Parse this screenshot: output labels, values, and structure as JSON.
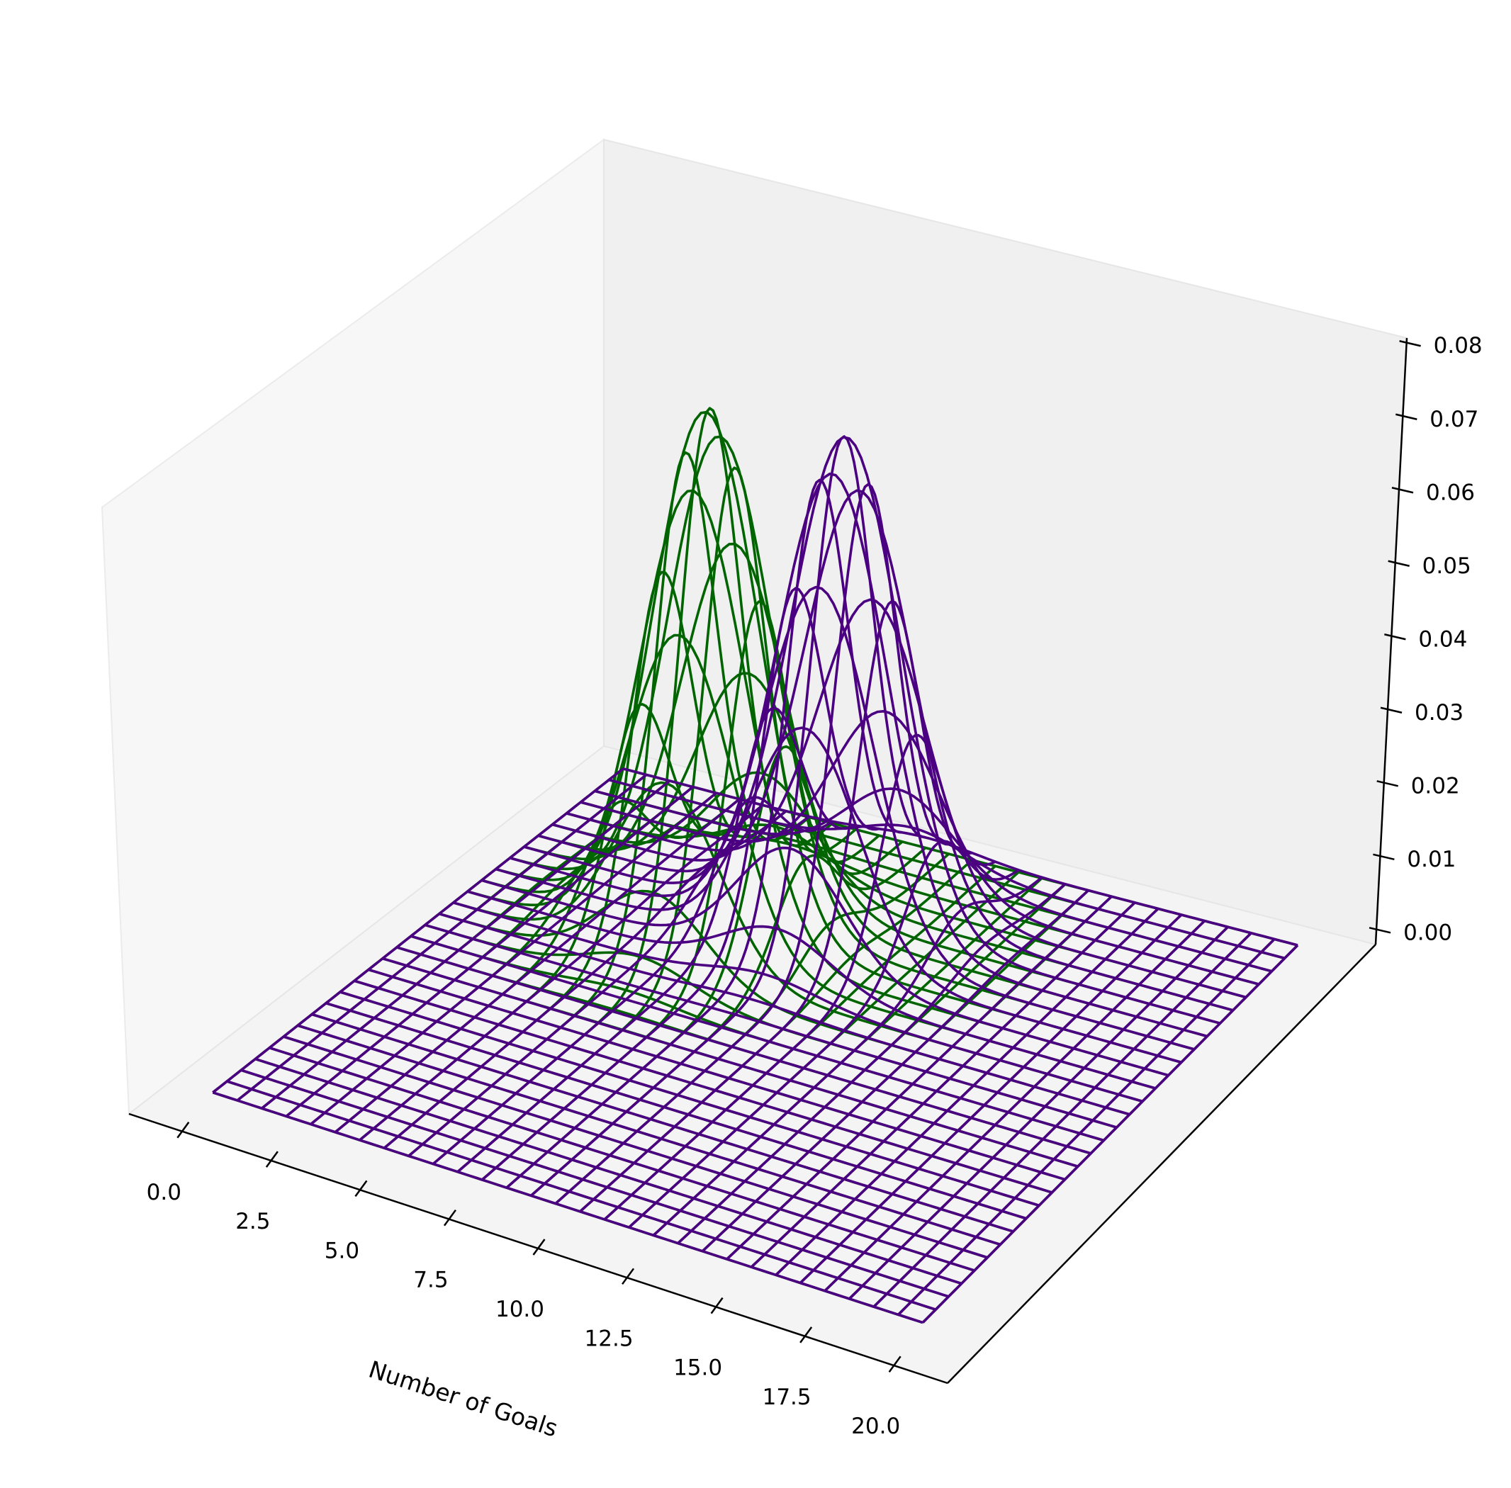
{
  "chart_data": {
    "type": "wireframe-3d",
    "title": "",
    "xlabel": "Number of Goals",
    "ylabel": "",
    "zlabel": "",
    "xlim": [
      -1.5,
      21.5
    ],
    "ylim": [
      -1.5,
      21.5
    ],
    "zlim": [
      -0.002,
      0.0807
    ],
    "x_ticks": [
      "0.0",
      "2.5",
      "5.0",
      "7.5",
      "10.0",
      "12.5",
      "15.0",
      "17.5",
      "20.0"
    ],
    "x_tick_values": [
      0,
      2.5,
      5,
      7.5,
      10,
      12.5,
      15,
      17.5,
      20
    ],
    "z_ticks": [
      "0.00",
      "0.01",
      "0.02",
      "0.03",
      "0.04",
      "0.05",
      "0.06",
      "0.07",
      "0.08"
    ],
    "z_tick_values": [
      0,
      0.01,
      0.02,
      0.03,
      0.04,
      0.05,
      0.06,
      0.07,
      0.08
    ],
    "grid_range": [
      0,
      20
    ],
    "grid_points": 30,
    "series": [
      {
        "name": "green-surface",
        "color": "#006400",
        "mean": [
          6.2,
          13.9
        ],
        "sigma": [
          1.5,
          1.5
        ],
        "peak": 0.0707
      },
      {
        "name": "purple-surface",
        "color": "#4B0082",
        "mean": [
          9.0,
          15.7
        ],
        "sigma": [
          1.55,
          1.55
        ],
        "peak": 0.0662
      }
    ]
  }
}
